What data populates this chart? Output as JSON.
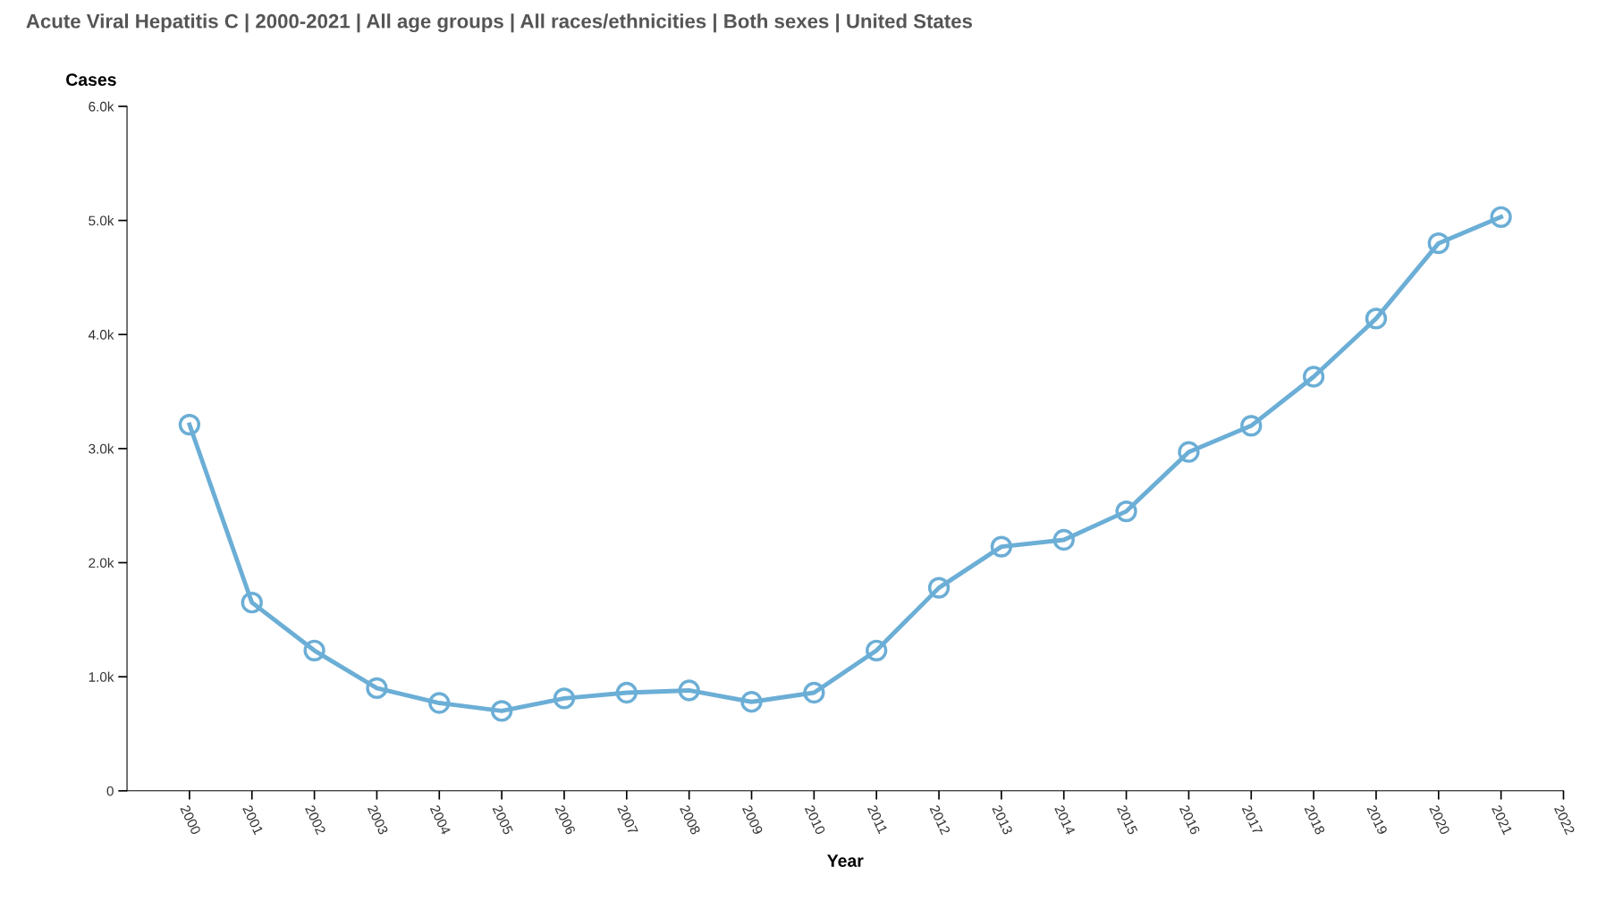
{
  "chart_data": {
    "type": "line",
    "title": "Acute Viral Hepatitis C | 2000-2021 | All age groups | All races/ethnicities | Both sexes | United States",
    "xlabel": "Year",
    "ylabel": "Cases",
    "x": [
      2000,
      2001,
      2002,
      2003,
      2004,
      2005,
      2006,
      2007,
      2008,
      2009,
      2010,
      2011,
      2012,
      2013,
      2014,
      2015,
      2016,
      2017,
      2018,
      2019,
      2020,
      2021
    ],
    "series": [
      {
        "color": "#6baed6",
        "values": [
          3210,
          1650,
          1230,
          900,
          770,
          700,
          810,
          860,
          880,
          780,
          860,
          1230,
          1780,
          2140,
          2200,
          2450,
          2970,
          3200,
          3630,
          4140,
          4800,
          5030
        ]
      }
    ],
    "xlim": [
      1999,
      2022
    ],
    "xticks": [
      2000,
      2001,
      2002,
      2003,
      2004,
      2005,
      2006,
      2007,
      2008,
      2009,
      2010,
      2011,
      2012,
      2013,
      2014,
      2015,
      2016,
      2017,
      2018,
      2019,
      2020,
      2021,
      2022
    ],
    "ylim": [
      0,
      6000
    ],
    "yticks": [
      0,
      {
        "value": 1000,
        "label": "1.0k"
      },
      {
        "value": 2000,
        "label": "2.0k"
      },
      {
        "value": 3000,
        "label": "3.0k"
      },
      {
        "value": 4000,
        "label": "4.0k"
      },
      {
        "value": 5000,
        "label": "5.0k"
      },
      {
        "value": 6000,
        "label": "6.0k"
      }
    ],
    "grid": false,
    "legend": false,
    "marker": "circle",
    "line_style": "solid"
  }
}
